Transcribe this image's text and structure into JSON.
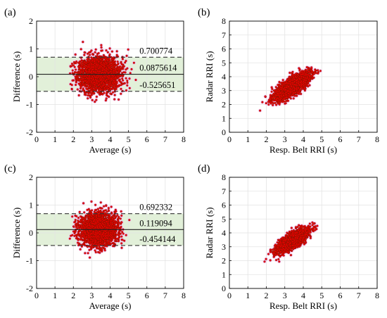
{
  "colors": {
    "point": "#f00000",
    "point_edge": "#6b1a00",
    "halo": "#f5b8e8",
    "band": "#e2f0d9",
    "grid": "#e3e3e3"
  },
  "chart_data": [
    {
      "type": "scatter",
      "panel_label": "(a)",
      "xlabel": "Average (s)",
      "ylabel": "Difference (s)",
      "xlim": [
        0,
        8
      ],
      "ylim": [
        -2,
        2
      ],
      "xticks": [
        "0",
        "1",
        "2",
        "3",
        "4",
        "5",
        "6",
        "7",
        "8"
      ],
      "yticks": [
        "-2",
        "-1",
        "0",
        "1",
        "2"
      ],
      "grid": true,
      "mean_line": 0.0875614,
      "upper_loa": 0.700774,
      "lower_loa": -0.525651,
      "annotations": [
        "0.700774",
        "0.0875614",
        "-0.525651"
      ],
      "cloud": {
        "x_center": 3.4,
        "x_sd": 0.55,
        "y_center": 0.09,
        "y_sd": 0.31,
        "x_range": [
          1.8,
          5.5
        ],
        "y_range": [
          -1.0,
          1.35
        ],
        "count": 2500,
        "seed": 11
      }
    },
    {
      "type": "scatter",
      "panel_label": "(b)",
      "xlabel": "Resp. Belt RRI (s)",
      "ylabel": "Radar RRI (s)",
      "xlim": [
        0,
        8
      ],
      "ylim": [
        0,
        8
      ],
      "xticks": [
        "0",
        "1",
        "2",
        "3",
        "4",
        "5",
        "6",
        "7",
        "8"
      ],
      "yticks": [
        "0",
        "1",
        "2",
        "3",
        "4",
        "5",
        "6",
        "7",
        "8"
      ],
      "grid": true,
      "cloud": {
        "center": [
          3.4,
          3.3
        ],
        "major_sd": 0.62,
        "minor_sd": 0.22,
        "x_range": [
          0.4,
          7.0
        ],
        "count": 2500,
        "seed": 23
      }
    },
    {
      "type": "scatter",
      "panel_label": "(c)",
      "xlabel": "Average (s)",
      "ylabel": "Difference (s)",
      "xlim": [
        0,
        8
      ],
      "ylim": [
        -2,
        2
      ],
      "xticks": [
        "0",
        "1",
        "2",
        "3",
        "4",
        "5",
        "6",
        "7",
        "8"
      ],
      "yticks": [
        "-2",
        "-1",
        "0",
        "1",
        "2"
      ],
      "grid": true,
      "mean_line": 0.119094,
      "upper_loa": 0.692332,
      "lower_loa": -0.454144,
      "annotations": [
        "0.692332",
        "0.119094",
        "-0.454144"
      ],
      "cloud": {
        "x_center": 3.35,
        "x_sd": 0.5,
        "y_center": 0.12,
        "y_sd": 0.29,
        "x_range": [
          1.8,
          5.2
        ],
        "y_range": [
          -0.95,
          1.2
        ],
        "count": 2300,
        "seed": 37
      }
    },
    {
      "type": "scatter",
      "panel_label": "(d)",
      "xlabel": "Resp. Belt RRI (s)",
      "ylabel": "Radar RRI (s)",
      "xlim": [
        0,
        8
      ],
      "ylim": [
        0,
        8
      ],
      "xticks": [
        "0",
        "1",
        "2",
        "3",
        "4",
        "5",
        "6",
        "7",
        "8"
      ],
      "yticks": [
        "0",
        "1",
        "2",
        "3",
        "4",
        "5",
        "6",
        "7",
        "8"
      ],
      "grid": true,
      "cloud": {
        "center": [
          3.4,
          3.45
        ],
        "major_sd": 0.56,
        "minor_sd": 0.2,
        "x_range": [
          1.5,
          5.6
        ],
        "count": 2300,
        "seed": 53
      }
    }
  ]
}
